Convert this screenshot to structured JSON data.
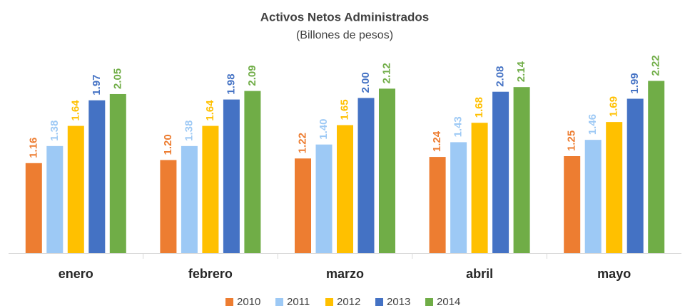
{
  "chart_data": {
    "type": "bar",
    "title": "Activos Netos Administrados",
    "subtitle": "(Billones de pesos)",
    "categories": [
      "enero",
      "febrero",
      "marzo",
      "abril",
      "mayo"
    ],
    "series": [
      {
        "name": "2010",
        "color": "#ed7d31",
        "values": [
          1.16,
          1.2,
          1.22,
          1.24,
          1.25
        ],
        "value_labels": [
          "1.16",
          "1.20",
          "1.22",
          "1.24",
          "1.25"
        ]
      },
      {
        "name": "2011",
        "color": "#9dc9f5",
        "values": [
          1.38,
          1.38,
          1.4,
          1.43,
          1.46
        ],
        "value_labels": [
          "1.38",
          "1.38",
          "1.40",
          "1.43",
          "1.46"
        ]
      },
      {
        "name": "2012",
        "color": "#ffc000",
        "values": [
          1.64,
          1.64,
          1.65,
          1.68,
          1.69
        ],
        "value_labels": [
          "1.64",
          "1.64",
          "1.65",
          "1.68",
          "1.69"
        ]
      },
      {
        "name": "2013",
        "color": "#4472c4",
        "values": [
          1.97,
          1.98,
          2.0,
          2.08,
          1.99
        ],
        "value_labels": [
          "1.97",
          "1.98",
          "2.00",
          "2.08",
          "1.99"
        ]
      },
      {
        "name": "2014",
        "color": "#70ad47",
        "values": [
          2.05,
          2.09,
          2.12,
          2.14,
          2.22
        ],
        "value_labels": [
          "2.05",
          "2.09",
          "2.12",
          "2.14",
          "2.22"
        ]
      }
    ],
    "ylim": [
      0,
      2.5
    ],
    "legend": "bottom"
  }
}
